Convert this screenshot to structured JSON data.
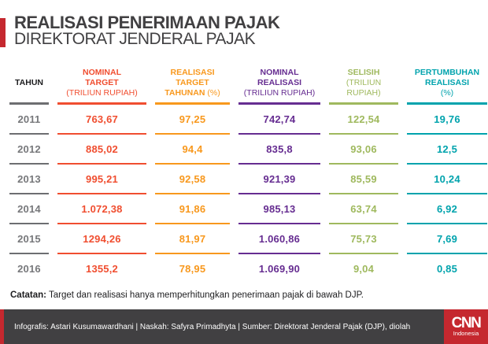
{
  "title": {
    "line1": "REALISASI PENERIMAAN PAJAK",
    "line2": "DIREKTORAT JENDERAL PAJAK"
  },
  "colors": {
    "accent_red": "#c5282f",
    "title_dark": "#414042",
    "black": "#1d1d1f",
    "year_gray": "#77787b",
    "gray_line": "#6d6e71",
    "red_orange": "#f04e30",
    "orange": "#f8981d",
    "purple": "#662d91",
    "green": "#9fb95e",
    "teal": "#00a3ad",
    "footer_bg": "#414042"
  },
  "table": {
    "headers": [
      {
        "key": "tahun",
        "text_color": "#1d1d1f",
        "line_color": "#6d6e71",
        "value_color": "#77787b",
        "lines": [
          [
            {
              "t": "TAHUN",
              "b": 1
            }
          ]
        ]
      },
      {
        "key": "nominal-target",
        "text_color": "#f04e30",
        "line_color": "#f04e30",
        "value_color": "#f04e30",
        "lines": [
          [
            {
              "t": "NOMINAL",
              "b": 1
            }
          ],
          [
            {
              "t": "TARGET",
              "b": 1
            }
          ],
          [
            {
              "t": "(TRILIUN RUPIAH)",
              "b": 0
            }
          ]
        ]
      },
      {
        "key": "realisasi-target-tahunan",
        "text_color": "#f8981d",
        "line_color": "#f8981d",
        "value_color": "#f8981d",
        "lines": [
          [
            {
              "t": "REALISASI",
              "b": 1
            }
          ],
          [
            {
              "t": "TARGET",
              "b": 1
            }
          ],
          [
            {
              "t": "TAHUNAN ",
              "b": 1
            },
            {
              "t": "(%)",
              "b": 0
            }
          ]
        ]
      },
      {
        "key": "nominal-realisasi",
        "text_color": "#662d91",
        "line_color": "#662d91",
        "value_color": "#662d91",
        "lines": [
          [
            {
              "t": "NOMINAL",
              "b": 1
            }
          ],
          [
            {
              "t": "REALISASI",
              "b": 1
            }
          ],
          [
            {
              "t": "(TRILIUN RUPIAH)",
              "b": 0
            }
          ]
        ]
      },
      {
        "key": "selisih",
        "text_color": "#9fb95e",
        "line_color": "#9fb95e",
        "value_color": "#9fb95e",
        "lines": [
          [
            {
              "t": "SELISIH",
              "b": 1
            }
          ],
          [
            {
              "t": "(TRILIUN",
              "b": 0
            }
          ],
          [
            {
              "t": "RUPIAH)",
              "b": 0
            }
          ]
        ]
      },
      {
        "key": "pertumbuhan-realisasi",
        "text_color": "#00a3ad",
        "line_color": "#00a3ad",
        "value_color": "#00a3ad",
        "lines": [
          [
            {
              "t": "PERTUMBUHAN",
              "b": 1
            }
          ],
          [
            {
              "t": "REALISASI",
              "b": 1
            }
          ],
          [
            {
              "t": "(%)",
              "b": 0
            }
          ]
        ]
      }
    ]
  },
  "chart_data": {
    "type": "table",
    "title": "REALISASI PENERIMAAN PAJAK DIREKTORAT JENDERAL PAJAK",
    "columns": [
      "TAHUN",
      "NOMINAL TARGET (TRILIUN RUPIAH)",
      "REALISASI TARGET TAHUNAN (%)",
      "NOMINAL REALISASI (TRILIUN RUPIAH)",
      "SELISIH (TRILIUN RUPIAH)",
      "PERTUMBUHAN REALISASI (%)"
    ],
    "rows": [
      [
        "2011",
        "763,67",
        "97,25",
        "742,74",
        "122,54",
        "19,76"
      ],
      [
        "2012",
        "885,02",
        "94,4",
        "835,8",
        "93,06",
        "12,5"
      ],
      [
        "2013",
        "995,21",
        "92,58",
        "921,39",
        "85,59",
        "10,24"
      ],
      [
        "2014",
        "1.072,38",
        "91,86",
        "985,13",
        "63,74",
        "6,92"
      ],
      [
        "2015",
        "1294,26",
        "81,97",
        "1.060,86",
        "75,73",
        "7,69"
      ],
      [
        "2016",
        "1355,2",
        "78,95",
        "1.069,90",
        "9,04",
        "0,85"
      ]
    ]
  },
  "note": {
    "label": "Catatan:",
    "text": " Target dan realisasi hanya memperhitungkan penerimaan pajak di bawah DJP."
  },
  "footer": {
    "credits": "Infografis: Astari Kusumawardhani | Naskah: Safyra Primadhyta | Sumber: Direktorat Jenderal Pajak (DJP), diolah",
    "logo_brand": "CNN",
    "logo_sub": "Indonesia"
  }
}
